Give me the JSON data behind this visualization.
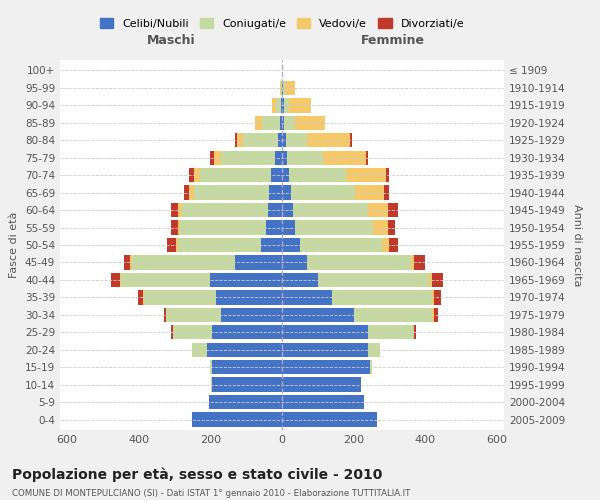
{
  "age_groups": [
    "0-4",
    "5-9",
    "10-14",
    "15-19",
    "20-24",
    "25-29",
    "30-34",
    "35-39",
    "40-44",
    "45-49",
    "50-54",
    "55-59",
    "60-64",
    "65-69",
    "70-74",
    "75-79",
    "80-84",
    "85-89",
    "90-94",
    "95-99",
    "100+"
  ],
  "birth_years": [
    "2005-2009",
    "2000-2004",
    "1995-1999",
    "1990-1994",
    "1985-1989",
    "1980-1984",
    "1975-1979",
    "1970-1974",
    "1965-1969",
    "1960-1964",
    "1955-1959",
    "1950-1954",
    "1945-1949",
    "1940-1944",
    "1935-1939",
    "1930-1934",
    "1925-1929",
    "1920-1924",
    "1915-1919",
    "1910-1914",
    "≤ 1909"
  ],
  "males": {
    "celibi": [
      250,
      205,
      195,
      195,
      210,
      195,
      170,
      185,
      200,
      130,
      60,
      45,
      40,
      35,
      30,
      20,
      10,
      5,
      2,
      1,
      0
    ],
    "coniugati": [
      0,
      0,
      2,
      5,
      40,
      110,
      155,
      200,
      250,
      290,
      230,
      240,
      240,
      210,
      200,
      150,
      100,
      50,
      15,
      2,
      0
    ],
    "vedovi": [
      0,
      0,
      0,
      0,
      0,
      0,
      0,
      2,
      2,
      5,
      5,
      5,
      10,
      15,
      15,
      20,
      15,
      20,
      10,
      2,
      0
    ],
    "divorziati": [
      0,
      0,
      0,
      0,
      0,
      5,
      5,
      15,
      25,
      15,
      25,
      20,
      20,
      15,
      15,
      10,
      5,
      0,
      0,
      0,
      0
    ]
  },
  "females": {
    "nubili": [
      265,
      230,
      220,
      245,
      240,
      240,
      200,
      140,
      100,
      70,
      50,
      35,
      30,
      25,
      20,
      15,
      10,
      5,
      5,
      2,
      0
    ],
    "coniugate": [
      0,
      0,
      0,
      5,
      35,
      130,
      220,
      280,
      310,
      290,
      230,
      220,
      210,
      180,
      160,
      100,
      60,
      30,
      15,
      5,
      0
    ],
    "vedove": [
      0,
      0,
      0,
      0,
      0,
      0,
      5,
      5,
      10,
      10,
      20,
      40,
      55,
      80,
      110,
      120,
      120,
      85,
      60,
      30,
      0
    ],
    "divorziate": [
      0,
      0,
      0,
      0,
      0,
      5,
      10,
      20,
      30,
      30,
      25,
      20,
      30,
      15,
      10,
      5,
      5,
      0,
      0,
      0,
      0
    ]
  },
  "colors": {
    "celibi": "#4472C4",
    "coniugati": "#C5D9A0",
    "vedovi": "#F5C96A",
    "divorziati": "#C0392B"
  },
  "title": "Popolazione per età, sesso e stato civile - 2010",
  "subtitle": "COMUNE DI MONTEPULCIANO (SI) - Dati ISTAT 1° gennaio 2010 - Elaborazione TUTTITALIA.IT",
  "xlabel_left": "Maschi",
  "xlabel_right": "Femmine",
  "ylabel_left": "Fasce di età",
  "ylabel_right": "Anni di nascita",
  "xlim": 620,
  "bg_color": "#f0f0f0",
  "plot_bg": "#ffffff",
  "legend_labels": [
    "Celibi/Nubili",
    "Coniugati/e",
    "Vedovi/e",
    "Divorziati/e"
  ]
}
